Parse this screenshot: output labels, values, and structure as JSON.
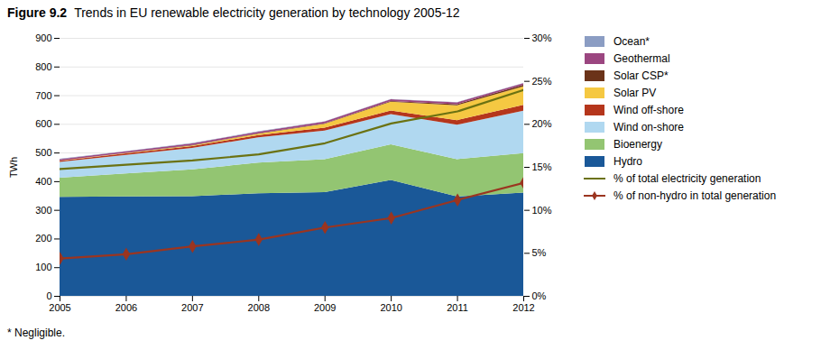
{
  "chart_data": {
    "type": "area",
    "title": "Figure 9.2",
    "subtitle": "Trends in EU renewable electricity generation by technology 2005-12",
    "caption": "* Negligible.",
    "x": [
      2005,
      2006,
      2007,
      2008,
      2009,
      2010,
      2011,
      2012
    ],
    "xlim": [
      2005,
      2012
    ],
    "xticks": [
      2005,
      2006,
      2007,
      2008,
      2009,
      2010,
      2011,
      2012
    ],
    "ylabel": "TWh",
    "ylim": [
      0,
      900
    ],
    "yticks": [
      0,
      100,
      200,
      300,
      400,
      500,
      600,
      700,
      800,
      900
    ],
    "y2lim": [
      0,
      30
    ],
    "y2ticks": [
      {
        "value": 0,
        "label": "0%"
      },
      {
        "value": 5,
        "label": "5%"
      },
      {
        "value": 10,
        "label": "10%"
      },
      {
        "value": 15,
        "label": "15%"
      },
      {
        "value": 20,
        "label": "20%"
      },
      {
        "value": 25,
        "label": "25%"
      },
      {
        "value": 30,
        "label": "30%"
      }
    ],
    "stacked": true,
    "grid": true,
    "legend": "right",
    "series": [
      {
        "name": "Hydro",
        "type": "area",
        "color": "#1a5898",
        "values": [
          345,
          347,
          348,
          358,
          362,
          404,
          347,
          360
        ]
      },
      {
        "name": "Bioenergy",
        "type": "area",
        "color": "#93c572",
        "values": [
          67,
          80,
          93,
          107,
          115,
          125,
          130,
          138
        ]
      },
      {
        "name": "Wind on-shore",
        "type": "area",
        "color": "#b0d8f0",
        "values": [
          55,
          65,
          75,
          88,
          100,
          105,
          120,
          148
        ]
      },
      {
        "name": "Wind off-shore",
        "type": "area",
        "color": "#b5361c",
        "values": [
          4,
          5,
          6,
          8,
          10,
          13,
          16,
          20
        ]
      },
      {
        "name": "Solar PV",
        "type": "area",
        "color": "#f5c842",
        "values": [
          1,
          2,
          3,
          5,
          13,
          30,
          52,
          65
        ]
      },
      {
        "name": "Solar CSP*",
        "type": "area",
        "color": "#6b3319",
        "values": [
          0,
          0,
          1,
          1,
          2,
          3,
          4,
          5
        ]
      },
      {
        "name": "Geothermal",
        "type": "area",
        "color": "#9b4680",
        "values": [
          5,
          5,
          6,
          6,
          6,
          6,
          6,
          6
        ]
      },
      {
        "name": "Ocean*",
        "type": "area",
        "color": "#8b9dc3",
        "values": [
          1,
          1,
          1,
          1,
          1,
          1,
          1,
          1
        ]
      },
      {
        "name": "% of total electricity generation",
        "type": "line",
        "axis": "y2",
        "color": "#6b7212",
        "values": [
          14.8,
          15.3,
          15.8,
          16.5,
          17.8,
          20.1,
          21.5,
          24.0
        ]
      },
      {
        "name": "% of non-hydro in total generation",
        "type": "line",
        "axis": "y2",
        "color": "#9b3520",
        "marker": "diamond",
        "values": [
          4.4,
          4.9,
          5.8,
          6.6,
          8.0,
          9.1,
          11.2,
          13.2
        ]
      }
    ]
  }
}
